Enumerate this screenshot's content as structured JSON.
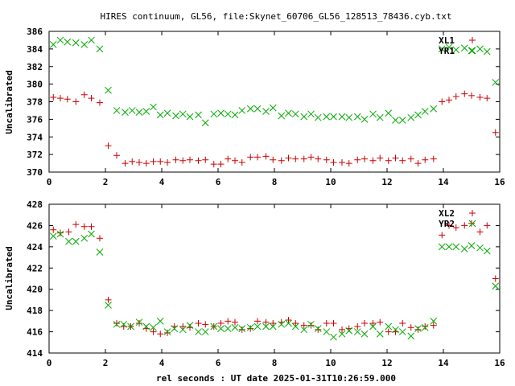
{
  "title": "HIRES continuum, GL56, file:Skynet_60706_GL56_128513_78436.cyb.txt",
  "xlabel": "rel seconds : UT date 2025-01-31T10:26:59.000",
  "colors": {
    "red": "#cc0000",
    "green": "#00aa00"
  },
  "chart_data": [
    {
      "type": "scatter",
      "ylabel": "Uncalibrated",
      "xlim": [
        0,
        16
      ],
      "ylim": [
        370,
        386
      ],
      "xticks": [
        0,
        2,
        4,
        6,
        8,
        10,
        12,
        14,
        16
      ],
      "yticks": [
        370,
        372,
        374,
        376,
        378,
        380,
        382,
        384,
        386
      ],
      "legend_position": "top-right",
      "series": [
        {
          "name": "XL1",
          "marker": "plus",
          "color": "#cc0000",
          "points": [
            [
              0.15,
              378.5
            ],
            [
              0.4,
              378.4
            ],
            [
              0.65,
              378.3
            ],
            [
              0.95,
              378.0
            ],
            [
              1.25,
              378.8
            ],
            [
              1.5,
              378.4
            ],
            [
              1.8,
              377.9
            ],
            [
              2.1,
              373.0
            ],
            [
              2.4,
              371.9
            ],
            [
              2.7,
              371.0
            ],
            [
              2.95,
              371.2
            ],
            [
              3.2,
              371.1
            ],
            [
              3.45,
              371.0
            ],
            [
              3.7,
              371.2
            ],
            [
              3.95,
              371.2
            ],
            [
              4.2,
              371.1
            ],
            [
              4.5,
              371.4
            ],
            [
              4.75,
              371.3
            ],
            [
              5.0,
              371.4
            ],
            [
              5.3,
              371.3
            ],
            [
              5.55,
              371.4
            ],
            [
              5.85,
              370.9
            ],
            [
              6.1,
              370.9
            ],
            [
              6.35,
              371.5
            ],
            [
              6.6,
              371.3
            ],
            [
              6.85,
              371.1
            ],
            [
              7.15,
              371.7
            ],
            [
              7.4,
              371.7
            ],
            [
              7.7,
              371.8
            ],
            [
              7.95,
              371.4
            ],
            [
              8.25,
              371.3
            ],
            [
              8.5,
              371.6
            ],
            [
              8.75,
              371.5
            ],
            [
              9.05,
              371.5
            ],
            [
              9.3,
              371.7
            ],
            [
              9.55,
              371.5
            ],
            [
              9.85,
              371.4
            ],
            [
              10.1,
              371.1
            ],
            [
              10.4,
              371.1
            ],
            [
              10.65,
              371.0
            ],
            [
              10.95,
              371.4
            ],
            [
              11.2,
              371.5
            ],
            [
              11.5,
              371.3
            ],
            [
              11.75,
              371.6
            ],
            [
              12.05,
              371.3
            ],
            [
              12.3,
              371.6
            ],
            [
              12.55,
              371.3
            ],
            [
              12.85,
              371.5
            ],
            [
              13.1,
              371.0
            ],
            [
              13.35,
              371.4
            ],
            [
              13.65,
              371.5
            ],
            [
              13.95,
              378.0
            ],
            [
              14.2,
              378.2
            ],
            [
              14.45,
              378.6
            ],
            [
              14.75,
              378.9
            ],
            [
              15.0,
              378.7
            ],
            [
              15.3,
              378.5
            ],
            [
              15.55,
              378.4
            ],
            [
              15.85,
              374.5
            ]
          ]
        },
        {
          "name": "YR1",
          "marker": "cross",
          "color": "#00aa00",
          "points": [
            [
              0.15,
              384.5
            ],
            [
              0.4,
              385.0
            ],
            [
              0.65,
              384.8
            ],
            [
              0.95,
              384.7
            ],
            [
              1.25,
              384.5
            ],
            [
              1.5,
              385.0
            ],
            [
              1.8,
              384.0
            ],
            [
              2.1,
              379.3
            ],
            [
              2.4,
              377.0
            ],
            [
              2.7,
              376.8
            ],
            [
              2.95,
              377.0
            ],
            [
              3.2,
              376.8
            ],
            [
              3.45,
              376.9
            ],
            [
              3.7,
              377.4
            ],
            [
              3.95,
              376.5
            ],
            [
              4.2,
              376.7
            ],
            [
              4.5,
              376.4
            ],
            [
              4.75,
              376.6
            ],
            [
              5.0,
              376.3
            ],
            [
              5.3,
              376.5
            ],
            [
              5.55,
              375.6
            ],
            [
              5.85,
              376.6
            ],
            [
              6.1,
              376.7
            ],
            [
              6.35,
              376.6
            ],
            [
              6.6,
              376.5
            ],
            [
              6.85,
              377.0
            ],
            [
              7.15,
              377.2
            ],
            [
              7.4,
              377.2
            ],
            [
              7.7,
              376.9
            ],
            [
              7.95,
              377.3
            ],
            [
              8.25,
              376.4
            ],
            [
              8.5,
              376.7
            ],
            [
              8.75,
              376.6
            ],
            [
              9.05,
              376.3
            ],
            [
              9.3,
              376.6
            ],
            [
              9.55,
              376.2
            ],
            [
              9.85,
              376.3
            ],
            [
              10.1,
              376.3
            ],
            [
              10.4,
              376.3
            ],
            [
              10.65,
              376.2
            ],
            [
              10.95,
              376.3
            ],
            [
              11.2,
              376.0
            ],
            [
              11.5,
              376.6
            ],
            [
              11.75,
              376.2
            ],
            [
              12.05,
              376.7
            ],
            [
              12.3,
              375.9
            ],
            [
              12.55,
              375.9
            ],
            [
              12.85,
              376.2
            ],
            [
              13.1,
              376.5
            ],
            [
              13.35,
              376.9
            ],
            [
              13.65,
              377.2
            ],
            [
              13.95,
              384.0
            ],
            [
              14.2,
              384.2
            ],
            [
              14.45,
              383.9
            ],
            [
              14.75,
              384.1
            ],
            [
              15.0,
              383.8
            ],
            [
              15.3,
              384.0
            ],
            [
              15.55,
              383.7
            ],
            [
              15.85,
              380.2
            ]
          ]
        }
      ]
    },
    {
      "type": "scatter",
      "ylabel": "Uncalibrated",
      "xlim": [
        0,
        16
      ],
      "ylim": [
        414,
        428
      ],
      "xticks": [
        0,
        2,
        4,
        6,
        8,
        10,
        12,
        14,
        16
      ],
      "yticks": [
        414,
        416,
        418,
        420,
        422,
        424,
        426,
        428
      ],
      "legend_position": "top-right",
      "series": [
        {
          "name": "XL2",
          "marker": "plus",
          "color": "#cc0000",
          "points": [
            [
              0.15,
              425.6
            ],
            [
              0.4,
              425.3
            ],
            [
              0.7,
              425.4
            ],
            [
              0.95,
              426.1
            ],
            [
              1.25,
              425.9
            ],
            [
              1.5,
              425.9
            ],
            [
              1.8,
              424.8
            ],
            [
              2.1,
              419.0
            ],
            [
              2.4,
              416.8
            ],
            [
              2.65,
              416.5
            ],
            [
              2.9,
              416.5
            ],
            [
              3.2,
              416.8
            ],
            [
              3.45,
              416.3
            ],
            [
              3.7,
              416.0
            ],
            [
              3.95,
              415.8
            ],
            [
              4.2,
              415.9
            ],
            [
              4.45,
              416.5
            ],
            [
              4.75,
              416.5
            ],
            [
              5.0,
              416.4
            ],
            [
              5.3,
              416.8
            ],
            [
              5.55,
              416.7
            ],
            [
              5.85,
              416.5
            ],
            [
              6.1,
              416.8
            ],
            [
              6.35,
              417.0
            ],
            [
              6.6,
              416.9
            ],
            [
              6.85,
              416.2
            ],
            [
              7.15,
              416.3
            ],
            [
              7.4,
              417.0
            ],
            [
              7.7,
              416.9
            ],
            [
              7.95,
              416.8
            ],
            [
              8.25,
              416.9
            ],
            [
              8.5,
              417.1
            ],
            [
              8.75,
              416.8
            ],
            [
              9.05,
              416.6
            ],
            [
              9.3,
              416.6
            ],
            [
              9.55,
              416.2
            ],
            [
              9.85,
              416.8
            ],
            [
              10.1,
              416.8
            ],
            [
              10.4,
              416.2
            ],
            [
              10.65,
              416.3
            ],
            [
              10.95,
              416.5
            ],
            [
              11.2,
              416.8
            ],
            [
              11.5,
              416.8
            ],
            [
              11.75,
              416.9
            ],
            [
              12.05,
              416.0
            ],
            [
              12.3,
              416.0
            ],
            [
              12.55,
              416.8
            ],
            [
              12.85,
              416.4
            ],
            [
              13.1,
              416.2
            ],
            [
              13.35,
              416.5
            ],
            [
              13.65,
              416.6
            ],
            [
              13.95,
              425.1
            ],
            [
              14.2,
              426.0
            ],
            [
              14.45,
              425.8
            ],
            [
              14.75,
              426.0
            ],
            [
              15.0,
              426.2
            ],
            [
              15.3,
              425.4
            ],
            [
              15.55,
              426.0
            ],
            [
              15.85,
              421.0
            ]
          ]
        },
        {
          "name": "YR2",
          "marker": "cross",
          "color": "#00aa00",
          "points": [
            [
              0.15,
              425.0
            ],
            [
              0.4,
              425.2
            ],
            [
              0.7,
              424.5
            ],
            [
              0.95,
              424.5
            ],
            [
              1.25,
              424.8
            ],
            [
              1.5,
              425.2
            ],
            [
              1.8,
              423.5
            ],
            [
              2.1,
              418.5
            ],
            [
              2.4,
              416.7
            ],
            [
              2.65,
              416.7
            ],
            [
              2.9,
              416.5
            ],
            [
              3.2,
              416.9
            ],
            [
              3.45,
              416.5
            ],
            [
              3.7,
              416.4
            ],
            [
              3.95,
              417.0
            ],
            [
              4.2,
              416.0
            ],
            [
              4.45,
              416.3
            ],
            [
              4.75,
              416.2
            ],
            [
              5.0,
              416.6
            ],
            [
              5.3,
              416.0
            ],
            [
              5.55,
              416.0
            ],
            [
              5.85,
              416.5
            ],
            [
              6.1,
              416.3
            ],
            [
              6.35,
              416.3
            ],
            [
              6.6,
              416.4
            ],
            [
              6.85,
              416.3
            ],
            [
              7.15,
              416.4
            ],
            [
              7.4,
              416.5
            ],
            [
              7.7,
              416.5
            ],
            [
              7.95,
              416.5
            ],
            [
              8.25,
              416.7
            ],
            [
              8.5,
              416.8
            ],
            [
              8.75,
              416.5
            ],
            [
              9.05,
              416.2
            ],
            [
              9.3,
              416.7
            ],
            [
              9.55,
              416.3
            ],
            [
              9.85,
              416.0
            ],
            [
              10.1,
              415.5
            ],
            [
              10.4,
              415.8
            ],
            [
              10.65,
              416.1
            ],
            [
              10.95,
              416.0
            ],
            [
              11.2,
              415.8
            ],
            [
              11.5,
              416.5
            ],
            [
              11.75,
              415.8
            ],
            [
              12.05,
              416.5
            ],
            [
              12.3,
              416.2
            ],
            [
              12.55,
              416.0
            ],
            [
              12.85,
              415.6
            ],
            [
              13.1,
              416.3
            ],
            [
              13.35,
              416.4
            ],
            [
              13.65,
              417.0
            ],
            [
              13.95,
              424.0
            ],
            [
              14.2,
              424.0
            ],
            [
              14.45,
              424.0
            ],
            [
              14.75,
              423.8
            ],
            [
              15.0,
              424.1
            ],
            [
              15.3,
              423.9
            ],
            [
              15.55,
              423.6
            ],
            [
              15.85,
              420.3
            ]
          ]
        }
      ]
    }
  ]
}
